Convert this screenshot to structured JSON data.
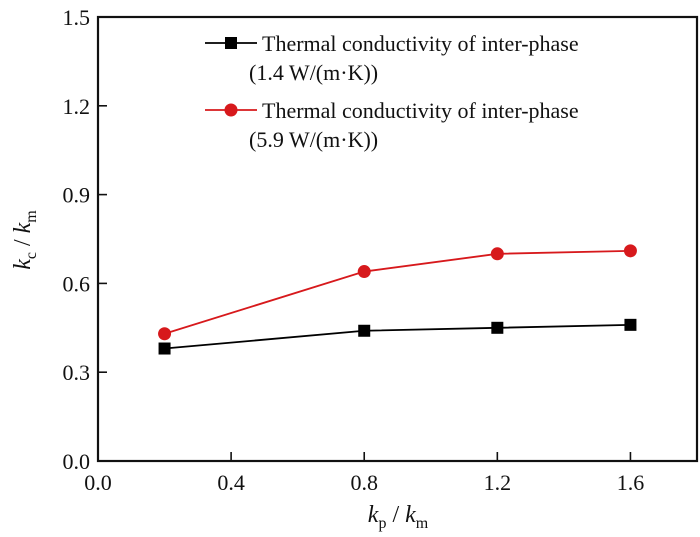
{
  "chart_data": {
    "type": "line",
    "title": "",
    "xlabel": {
      "main": "k",
      "sub": "p",
      "sep": " / ",
      "main2": "k",
      "sub2": "m"
    },
    "ylabel": {
      "main": "k",
      "sub": "c",
      "sep": " / ",
      "main2": "k",
      "sub2": "m"
    },
    "xlim": [
      0.0,
      1.8
    ],
    "ylim": [
      0.0,
      1.5
    ],
    "xticks": [
      0.0,
      0.4,
      0.8,
      1.2,
      1.6
    ],
    "xtick_labels": [
      "0.0",
      "0.4",
      "0.8",
      "1.2",
      "1.6"
    ],
    "yticks": [
      0.0,
      0.3,
      0.6,
      0.9,
      1.2,
      1.5
    ],
    "ytick_labels": [
      "0.0",
      "0.3",
      "0.6",
      "0.9",
      "1.2",
      "1.5"
    ],
    "grid": false,
    "legend_position": "top-right",
    "x": [
      0.2,
      0.8,
      1.2,
      1.6
    ],
    "series": [
      {
        "name": "Thermal conductivity of inter-phase",
        "name_line2": "(1.4 W/(m·K))",
        "values": [
          0.38,
          0.44,
          0.45,
          0.46
        ],
        "color": "#000000",
        "marker": "square"
      },
      {
        "name": "Thermal conductivity of inter-phase",
        "name_line2": "(5.9 W/(m·K))",
        "values": [
          0.43,
          0.64,
          0.7,
          0.71
        ],
        "color": "#d7191c",
        "marker": "circle"
      }
    ]
  }
}
